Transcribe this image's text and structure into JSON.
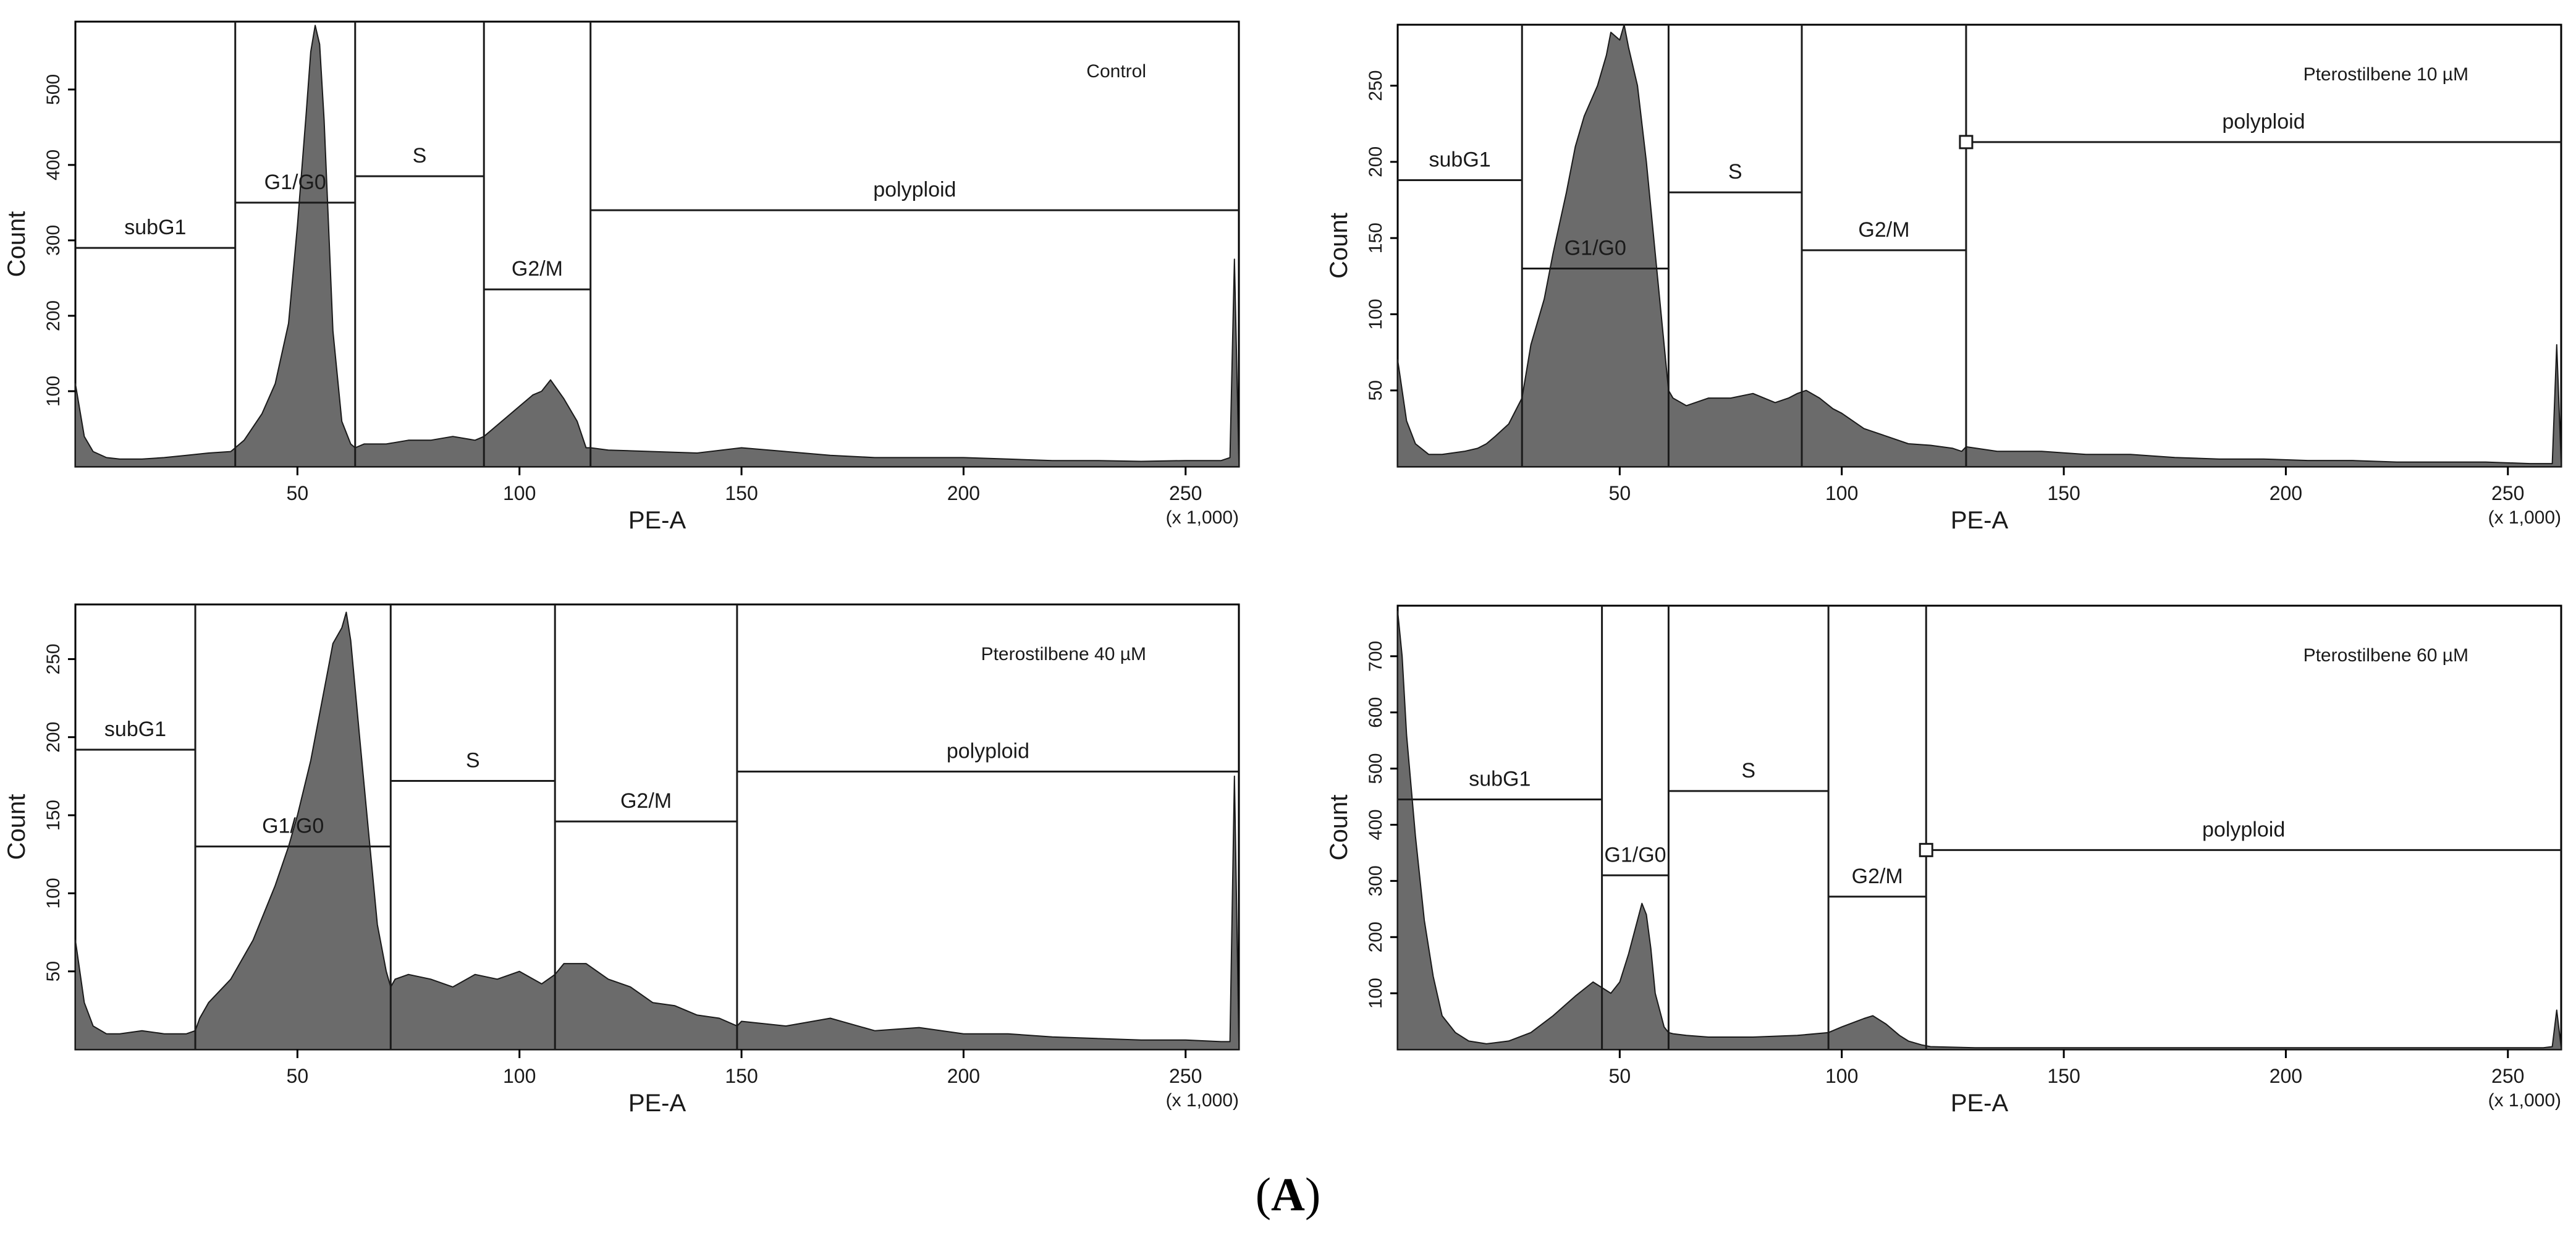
{
  "figure_label": {
    "open": "(",
    "letter": "A",
    "close": ")"
  },
  "colors": {
    "fill": "#6b6b6b",
    "stroke": "#1a1a1a",
    "gate": "#1a1a1a",
    "axis": "#000000",
    "text": "#1a1a1a"
  },
  "chart_data": [
    {
      "type": "area",
      "title": "Control",
      "xlabel": "PE-A",
      "ylabel": "Count",
      "x_multiplier": "(x 1,000)",
      "xlim": [
        0,
        262
      ],
      "ylim": [
        0,
        590
      ],
      "xticks": [
        50,
        100,
        150,
        200,
        250
      ],
      "yticks": [
        100,
        200,
        300,
        400,
        500
      ],
      "x": [
        0,
        2,
        4,
        7,
        10,
        15,
        20,
        25,
        30,
        35,
        37,
        38,
        42,
        45,
        48,
        50,
        52,
        53,
        54,
        55,
        56,
        57,
        58,
        60,
        62,
        63,
        65,
        70,
        75,
        80,
        85,
        90,
        92,
        95,
        98,
        100,
        103,
        105,
        107,
        110,
        113,
        115,
        116,
        120,
        130,
        140,
        150,
        160,
        170,
        180,
        190,
        200,
        210,
        220,
        230,
        240,
        250,
        258,
        260,
        261,
        262
      ],
      "y": [
        110,
        40,
        20,
        12,
        10,
        10,
        12,
        15,
        18,
        20,
        30,
        35,
        70,
        110,
        190,
        320,
        470,
        550,
        585,
        560,
        460,
        320,
        180,
        60,
        30,
        25,
        30,
        30,
        35,
        35,
        40,
        35,
        40,
        55,
        70,
        80,
        95,
        100,
        115,
        90,
        60,
        25,
        25,
        22,
        20,
        18,
        25,
        20,
        15,
        12,
        12,
        12,
        10,
        8,
        8,
        7,
        8,
        8,
        12,
        275,
        5
      ],
      "gates": [
        {
          "name": "subG1",
          "x1": 0,
          "x2": 36,
          "y": 290
        },
        {
          "name": "G1/G0",
          "x1": 36,
          "x2": 63,
          "y": 350
        },
        {
          "name": "S",
          "x1": 63,
          "x2": 92,
          "y": 385
        },
        {
          "name": "G2/M",
          "x1": 92,
          "x2": 116,
          "y": 235
        },
        {
          "name": "polyploid",
          "x1": 116,
          "x2": 262,
          "y": 340
        }
      ]
    },
    {
      "type": "area",
      "title": "Pterostilbene 10 µM",
      "xlabel": "PE-A",
      "ylabel": "Count",
      "x_multiplier": "(x 1,000)",
      "xlim": [
        0,
        262
      ],
      "ylim": [
        0,
        290
      ],
      "xticks": [
        50,
        100,
        150,
        200,
        250
      ],
      "yticks": [
        50,
        100,
        150,
        200,
        250
      ],
      "x": [
        0,
        2,
        4,
        7,
        10,
        15,
        18,
        20,
        22,
        25,
        28,
        30,
        33,
        35,
        38,
        40,
        42,
        45,
        47,
        48,
        50,
        51,
        52,
        54,
        56,
        58,
        60,
        61,
        62,
        65,
        70,
        75,
        80,
        85,
        88,
        90,
        92,
        95,
        98,
        100,
        105,
        110,
        115,
        120,
        125,
        127,
        128,
        135,
        145,
        155,
        165,
        175,
        185,
        195,
        205,
        215,
        225,
        235,
        245,
        255,
        260,
        261,
        262
      ],
      "y": [
        70,
        30,
        15,
        8,
        8,
        10,
        12,
        15,
        20,
        28,
        45,
        80,
        110,
        140,
        180,
        210,
        230,
        250,
        270,
        285,
        280,
        290,
        275,
        250,
        200,
        140,
        80,
        50,
        45,
        40,
        45,
        45,
        48,
        42,
        45,
        48,
        50,
        45,
        38,
        35,
        25,
        20,
        15,
        14,
        12,
        10,
        13,
        10,
        10,
        8,
        8,
        6,
        5,
        5,
        4,
        4,
        3,
        3,
        3,
        2,
        2,
        80,
        2
      ],
      "gates": [
        {
          "name": "subG1",
          "x1": 0,
          "x2": 28,
          "y": 188
        },
        {
          "name": "G1/G0",
          "x1": 28,
          "x2": 61,
          "y": 130
        },
        {
          "name": "S",
          "x1": 61,
          "x2": 91,
          "y": 180
        },
        {
          "name": "G2/M",
          "x1": 91,
          "x2": 128,
          "y": 142
        },
        {
          "name": "polyploid",
          "x1": 128,
          "x2": 262,
          "y": 213
        }
      ]
    },
    {
      "type": "area",
      "title": "Pterostilbene 40 µM",
      "xlabel": "PE-A",
      "ylabel": "Count",
      "x_multiplier": "(x 1,000)",
      "xlim": [
        0,
        262
      ],
      "ylim": [
        0,
        285
      ],
      "xticks": [
        50,
        100,
        150,
        200,
        250
      ],
      "yticks": [
        50,
        100,
        150,
        200,
        250
      ],
      "x": [
        0,
        2,
        4,
        7,
        10,
        15,
        20,
        25,
        27,
        28,
        30,
        35,
        40,
        45,
        48,
        50,
        53,
        55,
        57,
        58,
        60,
        61,
        62,
        64,
        66,
        68,
        70,
        71,
        72,
        75,
        80,
        85,
        90,
        95,
        100,
        105,
        108,
        110,
        115,
        120,
        125,
        130,
        135,
        140,
        145,
        149,
        150,
        160,
        170,
        180,
        190,
        200,
        210,
        220,
        230,
        240,
        250,
        258,
        260,
        261,
        262
      ],
      "y": [
        70,
        30,
        15,
        10,
        10,
        12,
        10,
        10,
        12,
        20,
        30,
        45,
        70,
        105,
        130,
        150,
        185,
        215,
        245,
        260,
        270,
        280,
        262,
        200,
        140,
        80,
        50,
        40,
        45,
        48,
        45,
        40,
        48,
        45,
        50,
        42,
        48,
        55,
        55,
        45,
        40,
        30,
        28,
        22,
        20,
        15,
        18,
        15,
        20,
        12,
        14,
        10,
        10,
        8,
        7,
        6,
        6,
        5,
        5,
        175,
        4
      ],
      "gates": [
        {
          "name": "subG1",
          "x1": 0,
          "x2": 27,
          "y": 192
        },
        {
          "name": "G1/G0",
          "x1": 27,
          "x2": 71,
          "y": 130
        },
        {
          "name": "S",
          "x1": 71,
          "x2": 108,
          "y": 172
        },
        {
          "name": "G2/M",
          "x1": 108,
          "x2": 149,
          "y": 146
        },
        {
          "name": "polyploid",
          "x1": 149,
          "x2": 262,
          "y": 178
        }
      ]
    },
    {
      "type": "area",
      "title": "Pterostilbene 60 µM",
      "xlabel": "PE-A",
      "ylabel": "Count",
      "x_multiplier": "(x 1,000)",
      "xlim": [
        0,
        262
      ],
      "ylim": [
        0,
        790
      ],
      "xticks": [
        50,
        100,
        150,
        200,
        250
      ],
      "yticks": [
        100,
        200,
        300,
        400,
        500,
        600,
        700
      ],
      "x": [
        0,
        1,
        2,
        4,
        6,
        8,
        10,
        13,
        16,
        20,
        25,
        30,
        35,
        40,
        44,
        46,
        48,
        50,
        52,
        54,
        55,
        56,
        57,
        58,
        60,
        61,
        62,
        65,
        70,
        80,
        90,
        97,
        100,
        105,
        107,
        110,
        113,
        115,
        118,
        120,
        130,
        150,
        170,
        190,
        210,
        230,
        250,
        258,
        260,
        261,
        262
      ],
      "y": [
        780,
        700,
        560,
        380,
        230,
        130,
        60,
        30,
        15,
        10,
        15,
        30,
        60,
        95,
        120,
        110,
        100,
        120,
        170,
        230,
        260,
        240,
        180,
        100,
        40,
        30,
        28,
        25,
        22,
        22,
        25,
        30,
        40,
        55,
        60,
        45,
        25,
        15,
        8,
        5,
        3,
        3,
        3,
        3,
        3,
        3,
        3,
        3,
        5,
        70,
        3
      ],
      "gates": [
        {
          "name": "subG1",
          "x1": 0,
          "x2": 46,
          "y": 445
        },
        {
          "name": "G1/G0",
          "x1": 46,
          "x2": 61,
          "y": 310
        },
        {
          "name": "S",
          "x1": 61,
          "x2": 97,
          "y": 460
        },
        {
          "name": "G2/M",
          "x1": 97,
          "x2": 119,
          "y": 272
        },
        {
          "name": "polyploid",
          "x1": 119,
          "x2": 262,
          "y": 355
        }
      ]
    }
  ]
}
